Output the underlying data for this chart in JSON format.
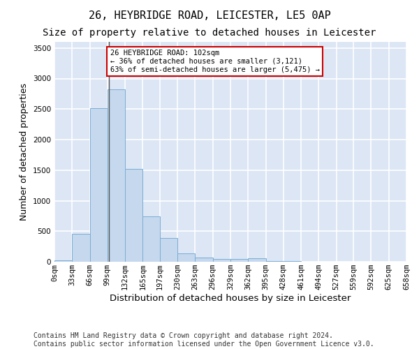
{
  "title1": "26, HEYBRIDGE ROAD, LEICESTER, LE5 0AP",
  "title2": "Size of property relative to detached houses in Leicester",
  "xlabel": "Distribution of detached houses by size in Leicester",
  "ylabel": "Number of detached properties",
  "bar_color": "#c5d8ee",
  "bar_edge_color": "#7aadd4",
  "annotation_line_color": "#555555",
  "annotation_box_edge": "#cc0000",
  "annotation_text": "26 HEYBRIDGE ROAD: 102sqm\n← 36% of detached houses are smaller (3,121)\n63% of semi-detached houses are larger (5,475) →",
  "property_size_sqm": 102,
  "bin_edges": [
    0,
    33,
    66,
    99,
    132,
    165,
    197,
    230,
    263,
    296,
    329,
    362,
    395,
    428,
    461,
    494,
    527,
    559,
    592,
    625,
    658
  ],
  "bar_heights": [
    20,
    460,
    2510,
    2820,
    1520,
    740,
    390,
    140,
    70,
    50,
    50,
    55,
    15,
    8,
    0,
    0,
    0,
    0,
    0,
    0
  ],
  "tick_labels": [
    "0sqm",
    "33sqm",
    "66sqm",
    "99sqm",
    "132sqm",
    "165sqm",
    "197sqm",
    "230sqm",
    "263sqm",
    "296sqm",
    "329sqm",
    "362sqm",
    "395sqm",
    "428sqm",
    "461sqm",
    "494sqm",
    "527sqm",
    "559sqm",
    "592sqm",
    "625sqm",
    "658sqm"
  ],
  "ylim": [
    0,
    3600
  ],
  "yticks": [
    0,
    500,
    1000,
    1500,
    2000,
    2500,
    3000,
    3500
  ],
  "footer1": "Contains HM Land Registry data © Crown copyright and database right 2024.",
  "footer2": "Contains public sector information licensed under the Open Government Licence v3.0.",
  "fig_facecolor": "#ffffff",
  "plot_bg_color": "#dce6f5",
  "grid_color": "#ffffff",
  "title_fontsize": 11,
  "subtitle_fontsize": 10,
  "axis_label_fontsize": 9,
  "tick_fontsize": 7.5,
  "footer_fontsize": 7
}
